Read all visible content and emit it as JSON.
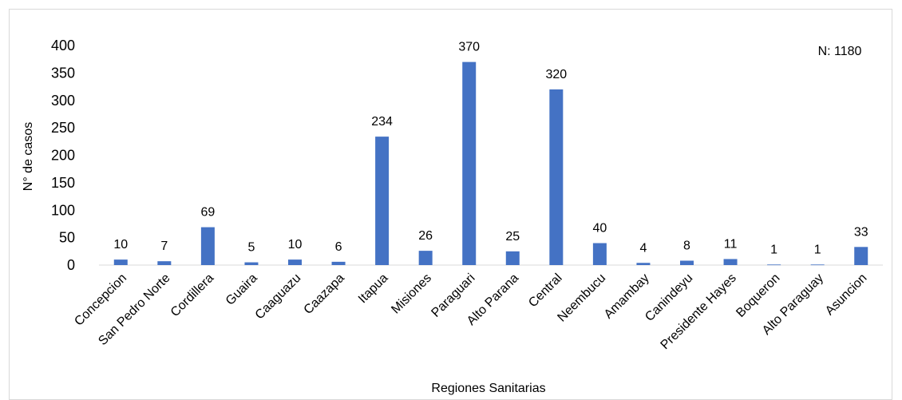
{
  "chart_data": {
    "type": "bar",
    "title": "",
    "xlabel": "Regiones Sanitarias",
    "ylabel": "N° de casos",
    "ylim": [
      0,
      400
    ],
    "yticks": [
      0,
      50,
      100,
      150,
      200,
      250,
      300,
      350,
      400
    ],
    "grid": false,
    "annotation": "N: 1180",
    "bar_color": "#4472C4",
    "categories": [
      "Concepcion",
      "San Pedro Norte",
      "Cordillera",
      "Guaira",
      "Caaguazu",
      "Caazapa",
      "Itapua",
      "Misiones",
      "Paraguari",
      "Alto Parana",
      "Central",
      "Neembucu",
      "Amambay",
      "Canindeyu",
      "Presidente Hayes",
      "Boqueron",
      "Alto Paraguay",
      "Asuncion"
    ],
    "values": [
      10,
      7,
      69,
      5,
      10,
      6,
      234,
      26,
      370,
      25,
      320,
      40,
      4,
      8,
      11,
      1,
      1,
      33
    ]
  }
}
